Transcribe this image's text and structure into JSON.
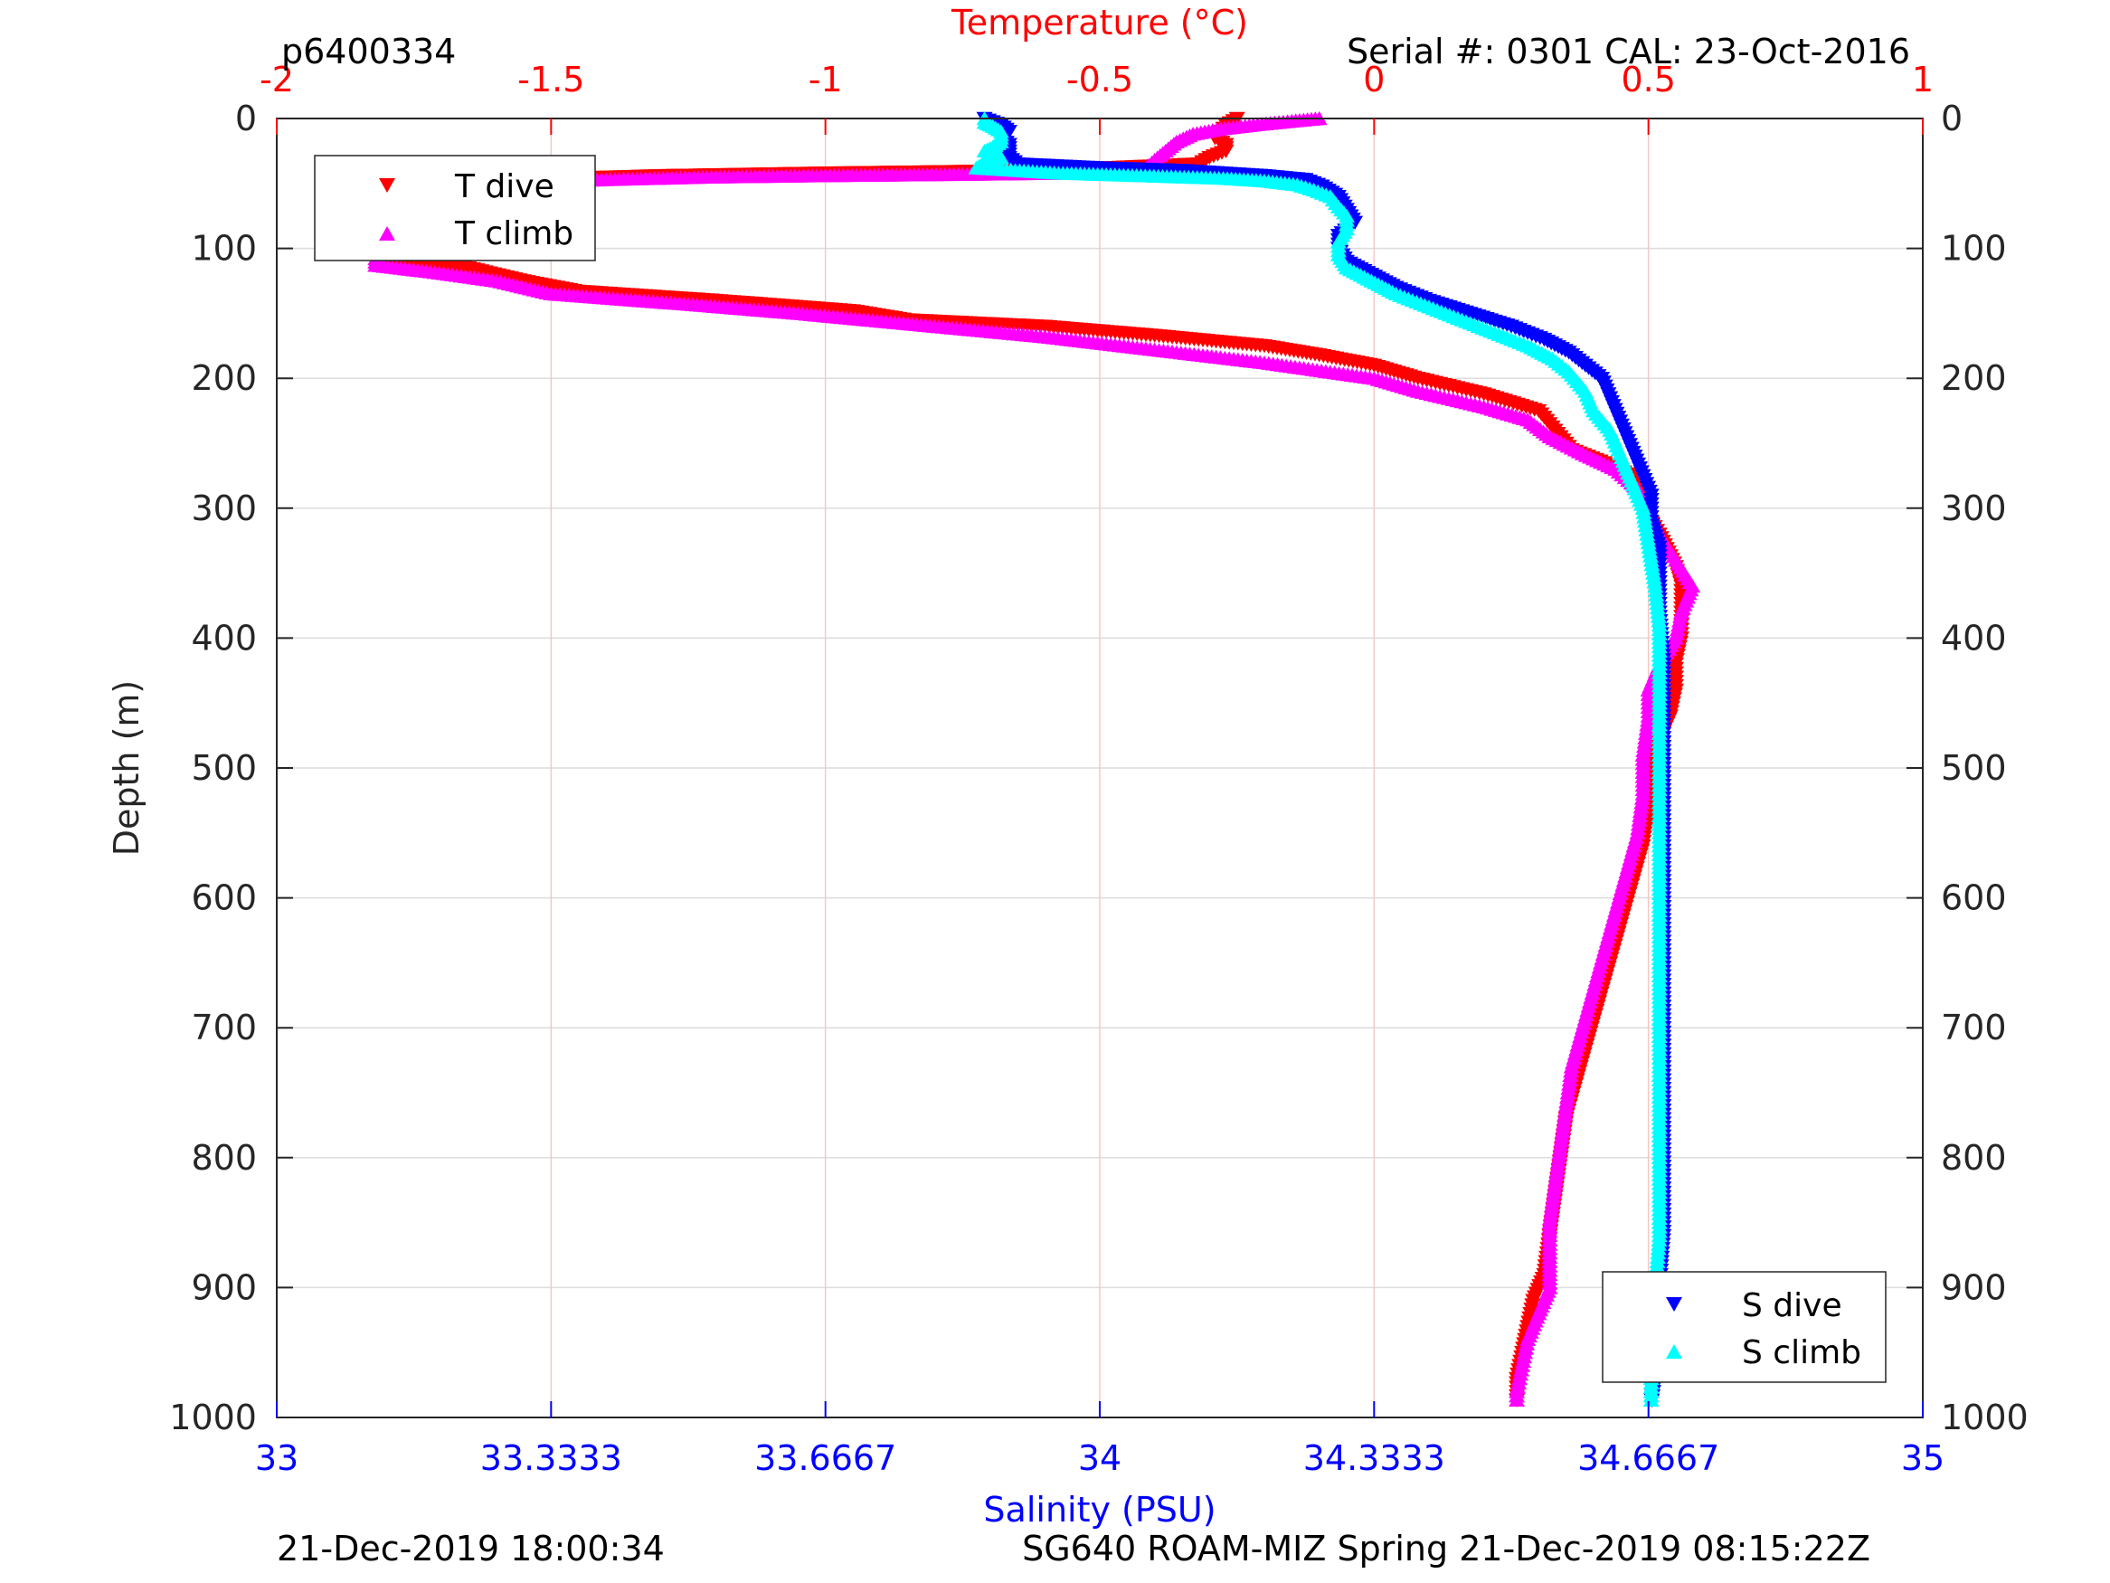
{
  "chart_data": {
    "type": "scatter",
    "title_left": "p6400334",
    "title_right": "Serial #: 0301  CAL: 23-Oct-2016",
    "footer_left": "21-Dec-2019 18:00:34",
    "footer_right": "SG640 ROAM-MIZ Spring 21-Dec-2019 08:15:22Z",
    "ylabel": "Depth (m)",
    "ylim": [
      0,
      1000
    ],
    "y_reversed": true,
    "y_ticks": [
      0,
      100,
      200,
      300,
      400,
      500,
      600,
      700,
      800,
      900,
      1000
    ],
    "y_tick_labels": [
      "0",
      "100",
      "200",
      "300",
      "400",
      "500",
      "600",
      "700",
      "800",
      "900",
      "1000"
    ],
    "grid": true,
    "temperature_axis": {
      "label": "Temperature (°C)",
      "position": "top",
      "color": "#ff0000",
      "lim": [
        -2,
        1
      ],
      "ticks": [
        -2,
        -1.5,
        -1,
        -0.5,
        0,
        0.5,
        1
      ],
      "tick_labels": [
        "-2",
        "-1.5",
        "-1",
        "-0.5",
        "0",
        "0.5",
        "1"
      ]
    },
    "salinity_axis": {
      "label": "Salinity (PSU)",
      "position": "bottom",
      "color": "#0000ff",
      "lim": [
        33,
        35
      ],
      "ticks": [
        33,
        33.3333,
        33.6667,
        34,
        34.3333,
        34.6667,
        35
      ],
      "tick_labels": [
        "33",
        "33.3333",
        "33.6667",
        "34",
        "34.3333",
        "34.6667",
        "35"
      ]
    },
    "legend_temperature": {
      "placement": "top-left",
      "entries": [
        "T dive",
        "T climb"
      ]
    },
    "legend_salinity": {
      "placement": "bottom-right",
      "entries": [
        "S dive",
        "S climb"
      ]
    },
    "series": [
      {
        "name": "T dive",
        "axis": "temperature",
        "marker": "triangle-down",
        "color": "#ff0000",
        "points": [
          [
            -0.25,
            0
          ],
          [
            -0.27,
            5
          ],
          [
            -0.28,
            10
          ],
          [
            -0.29,
            15
          ],
          [
            -0.27,
            20
          ],
          [
            -0.27,
            25
          ],
          [
            -0.3,
            30
          ],
          [
            -0.32,
            35
          ],
          [
            -0.6,
            40
          ],
          [
            -1.0,
            42
          ],
          [
            -1.3,
            44
          ],
          [
            -1.55,
            47
          ],
          [
            -1.68,
            52
          ],
          [
            -1.72,
            60
          ],
          [
            -1.75,
            70
          ],
          [
            -1.77,
            80
          ],
          [
            -1.79,
            90
          ],
          [
            -1.8,
            100
          ],
          [
            -1.8,
            108
          ],
          [
            -1.65,
            115
          ],
          [
            -1.55,
            125
          ],
          [
            -1.45,
            133
          ],
          [
            -1.2,
            140
          ],
          [
            -0.95,
            148
          ],
          [
            -0.85,
            155
          ],
          [
            -0.6,
            160
          ],
          [
            -0.4,
            167
          ],
          [
            -0.2,
            175
          ],
          [
            -0.1,
            182
          ],
          [
            0.0,
            190
          ],
          [
            0.08,
            200
          ],
          [
            0.2,
            212
          ],
          [
            0.3,
            225
          ],
          [
            0.33,
            240
          ],
          [
            0.36,
            255
          ],
          [
            0.42,
            265
          ],
          [
            0.47,
            275
          ],
          [
            0.5,
            288
          ],
          [
            0.49,
            300
          ],
          [
            0.52,
            320
          ],
          [
            0.55,
            345
          ],
          [
            0.56,
            360
          ],
          [
            0.56,
            380
          ],
          [
            0.56,
            400
          ],
          [
            0.55,
            420
          ],
          [
            0.55,
            440
          ],
          [
            0.54,
            460
          ],
          [
            0.52,
            480
          ],
          [
            0.51,
            500
          ],
          [
            0.5,
            530
          ],
          [
            0.49,
            560
          ],
          [
            0.47,
            590
          ],
          [
            0.45,
            620
          ],
          [
            0.43,
            650
          ],
          [
            0.41,
            680
          ],
          [
            0.39,
            710
          ],
          [
            0.37,
            740
          ],
          [
            0.35,
            770
          ],
          [
            0.34,
            800
          ],
          [
            0.33,
            830
          ],
          [
            0.32,
            860
          ],
          [
            0.31,
            890
          ],
          [
            0.29,
            910
          ],
          [
            0.28,
            930
          ],
          [
            0.27,
            950
          ],
          [
            0.26,
            970
          ],
          [
            0.26,
            990
          ]
        ]
      },
      {
        "name": "T climb",
        "axis": "temperature",
        "marker": "triangle-up",
        "color": "#ff00ff",
        "points": [
          [
            -0.1,
            0
          ],
          [
            -0.15,
            2
          ],
          [
            -0.22,
            5
          ],
          [
            -0.28,
            8
          ],
          [
            -0.33,
            12
          ],
          [
            -0.36,
            18
          ],
          [
            -0.38,
            25
          ],
          [
            -0.4,
            32
          ],
          [
            -0.42,
            40
          ],
          [
            -0.55,
            42
          ],
          [
            -0.75,
            43
          ],
          [
            -1.0,
            44
          ],
          [
            -1.2,
            45
          ],
          [
            -1.4,
            47
          ],
          [
            -1.58,
            50
          ],
          [
            -1.65,
            55
          ],
          [
            -1.68,
            62
          ],
          [
            -1.7,
            70
          ],
          [
            -1.73,
            80
          ],
          [
            -1.76,
            90
          ],
          [
            -1.8,
            100
          ],
          [
            -1.82,
            108
          ],
          [
            -1.82,
            113
          ],
          [
            -1.72,
            118
          ],
          [
            -1.6,
            125
          ],
          [
            -1.5,
            135
          ],
          [
            -1.25,
            143
          ],
          [
            -1.05,
            150
          ],
          [
            -0.85,
            158
          ],
          [
            -0.6,
            168
          ],
          [
            -0.4,
            178
          ],
          [
            -0.2,
            188
          ],
          [
            0.0,
            200
          ],
          [
            0.08,
            210
          ],
          [
            0.2,
            222
          ],
          [
            0.28,
            232
          ],
          [
            0.32,
            245
          ],
          [
            0.38,
            258
          ],
          [
            0.44,
            270
          ],
          [
            0.48,
            285
          ],
          [
            0.5,
            300
          ],
          [
            0.52,
            320
          ],
          [
            0.55,
            340
          ],
          [
            0.58,
            360
          ],
          [
            0.56,
            380
          ],
          [
            0.55,
            400
          ],
          [
            0.52,
            420
          ],
          [
            0.5,
            440
          ],
          [
            0.5,
            460
          ],
          [
            0.49,
            490
          ],
          [
            0.49,
            520
          ],
          [
            0.48,
            550
          ],
          [
            0.46,
            580
          ],
          [
            0.44,
            610
          ],
          [
            0.42,
            640
          ],
          [
            0.4,
            670
          ],
          [
            0.38,
            700
          ],
          [
            0.36,
            730
          ],
          [
            0.35,
            760
          ],
          [
            0.34,
            790
          ],
          [
            0.33,
            820
          ],
          [
            0.32,
            850
          ],
          [
            0.32,
            880
          ],
          [
            0.32,
            900
          ],
          [
            0.3,
            920
          ],
          [
            0.28,
            940
          ],
          [
            0.27,
            960
          ],
          [
            0.26,
            980
          ],
          [
            0.26,
            990
          ]
        ]
      },
      {
        "name": "S dive",
        "axis": "salinity",
        "marker": "triangle-down",
        "color": "#0000ff",
        "points": [
          [
            33.86,
            0
          ],
          [
            33.88,
            5
          ],
          [
            33.89,
            10
          ],
          [
            33.88,
            15
          ],
          [
            33.89,
            20
          ],
          [
            33.89,
            25
          ],
          [
            33.89,
            30
          ],
          [
            33.9,
            35
          ],
          [
            34.0,
            38
          ],
          [
            34.1,
            40
          ],
          [
            34.2,
            44
          ],
          [
            34.25,
            47
          ],
          [
            34.27,
            52
          ],
          [
            34.29,
            60
          ],
          [
            34.3,
            70
          ],
          [
            34.31,
            80
          ],
          [
            34.29,
            90
          ],
          [
            34.29,
            100
          ],
          [
            34.3,
            110
          ],
          [
            34.33,
            120
          ],
          [
            34.36,
            130
          ],
          [
            34.4,
            140
          ],
          [
            34.45,
            150
          ],
          [
            34.5,
            160
          ],
          [
            34.54,
            170
          ],
          [
            34.57,
            180
          ],
          [
            34.59,
            190
          ],
          [
            34.61,
            200
          ],
          [
            34.62,
            215
          ],
          [
            34.63,
            230
          ],
          [
            34.64,
            245
          ],
          [
            34.65,
            260
          ],
          [
            34.66,
            275
          ],
          [
            34.67,
            290
          ],
          [
            34.67,
            310
          ],
          [
            34.68,
            330
          ],
          [
            34.68,
            350
          ],
          [
            34.68,
            380
          ],
          [
            34.685,
            420
          ],
          [
            34.685,
            460
          ],
          [
            34.685,
            500
          ],
          [
            34.685,
            540
          ],
          [
            34.685,
            580
          ],
          [
            34.685,
            620
          ],
          [
            34.685,
            660
          ],
          [
            34.685,
            700
          ],
          [
            34.685,
            740
          ],
          [
            34.685,
            780
          ],
          [
            34.685,
            820
          ],
          [
            34.685,
            860
          ],
          [
            34.68,
            900
          ],
          [
            34.68,
            940
          ],
          [
            34.675,
            970
          ],
          [
            34.67,
            990
          ]
        ]
      },
      {
        "name": "S climb",
        "axis": "salinity",
        "marker": "triangle-up",
        "color": "#00ffff",
        "points": [
          [
            33.86,
            0
          ],
          [
            33.86,
            3
          ],
          [
            33.87,
            6
          ],
          [
            33.88,
            10
          ],
          [
            33.88,
            15
          ],
          [
            33.88,
            18
          ],
          [
            33.87,
            22
          ],
          [
            33.86,
            25
          ],
          [
            33.88,
            30
          ],
          [
            33.86,
            34
          ],
          [
            33.85,
            38
          ],
          [
            33.95,
            42
          ],
          [
            34.05,
            44
          ],
          [
            34.15,
            46
          ],
          [
            34.2,
            48
          ],
          [
            34.24,
            51
          ],
          [
            34.26,
            55
          ],
          [
            34.28,
            60
          ],
          [
            34.29,
            68
          ],
          [
            34.3,
            75
          ],
          [
            34.3,
            85
          ],
          [
            34.29,
            95
          ],
          [
            34.29,
            105
          ],
          [
            34.3,
            115
          ],
          [
            34.33,
            125
          ],
          [
            34.36,
            135
          ],
          [
            34.4,
            145
          ],
          [
            34.44,
            155
          ],
          [
            34.48,
            165
          ],
          [
            34.52,
            175
          ],
          [
            34.55,
            185
          ],
          [
            34.57,
            195
          ],
          [
            34.59,
            210
          ],
          [
            34.6,
            225
          ],
          [
            34.62,
            240
          ],
          [
            34.63,
            255
          ],
          [
            34.64,
            270
          ],
          [
            34.65,
            285
          ],
          [
            34.66,
            300
          ],
          [
            34.665,
            320
          ],
          [
            34.67,
            340
          ],
          [
            34.675,
            360
          ],
          [
            34.68,
            390
          ],
          [
            34.68,
            420
          ],
          [
            34.68,
            460
          ],
          [
            34.68,
            500
          ],
          [
            34.68,
            540
          ],
          [
            34.68,
            580
          ],
          [
            34.68,
            620
          ],
          [
            34.68,
            660
          ],
          [
            34.68,
            700
          ],
          [
            34.68,
            740
          ],
          [
            34.68,
            780
          ],
          [
            34.68,
            820
          ],
          [
            34.68,
            860
          ],
          [
            34.675,
            900
          ],
          [
            34.675,
            940
          ],
          [
            34.67,
            970
          ],
          [
            34.67,
            990
          ]
        ]
      }
    ]
  }
}
